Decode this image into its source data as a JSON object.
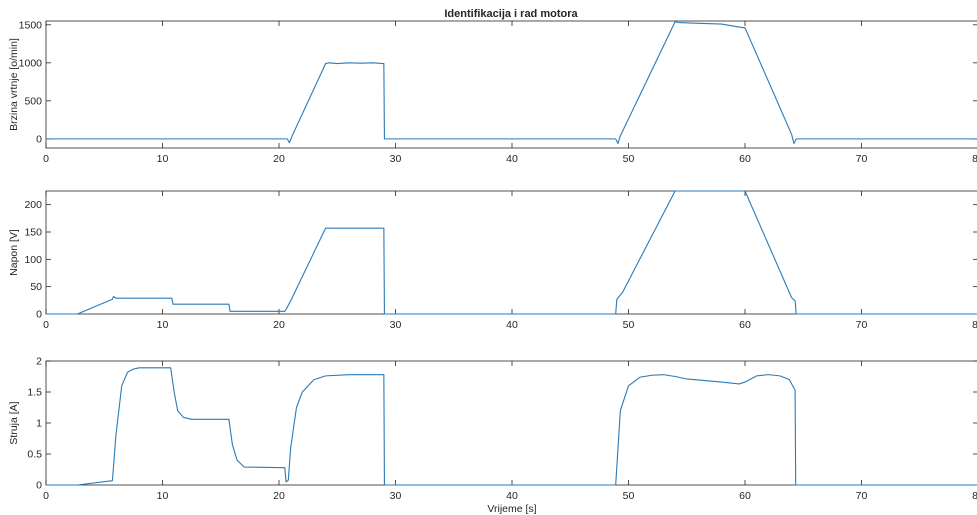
{
  "title": "Identifikacija i rad motora",
  "line_color": "#2a7ab8",
  "chart_data": [
    {
      "type": "line",
      "title": "Identifikacija i rad motora",
      "xlabel": "",
      "ylabel": "Brzina vrtnje [o/min]",
      "xlim": [
        0,
        80
      ],
      "ylim": [
        -120,
        1550
      ],
      "xticks": [
        "0",
        "10",
        "20",
        "30",
        "40",
        "50",
        "60",
        "70",
        "80"
      ],
      "yticks": [
        "0",
        "500",
        "1000",
        "1500"
      ],
      "grid": false,
      "series": [
        {
          "x": [
            0,
            20.7,
            20.9,
            21.1,
            24.0,
            24.3,
            25,
            26,
            27,
            28,
            29.0,
            29.05,
            29.2,
            48.9,
            49.1,
            49.3,
            54.0,
            54.3,
            56,
            58,
            59.5,
            60.0,
            64.0,
            64.2,
            64.4,
            80
          ],
          "y": [
            0,
            0,
            -50,
            30,
            990,
            1000,
            990,
            1000,
            995,
            1000,
            990,
            0,
            0,
            0,
            -60,
            40,
            1540,
            1530,
            1520,
            1510,
            1470,
            1460,
            60,
            -60,
            0,
            0
          ]
        }
      ]
    },
    {
      "type": "line",
      "xlabel": "",
      "ylabel": "Napon [V]",
      "xlim": [
        0,
        80
      ],
      "ylim": [
        0,
        225
      ],
      "xticks": [
        "0",
        "10",
        "20",
        "30",
        "40",
        "50",
        "60",
        "70",
        "80"
      ],
      "yticks": [
        "0",
        "50",
        "100",
        "150",
        "200"
      ],
      "grid": false,
      "series": [
        {
          "x": [
            0,
            2.7,
            5.7,
            5.8,
            6.0,
            10.8,
            10.9,
            15.7,
            15.8,
            20.5,
            20.7,
            21.0,
            24.0,
            29.0,
            29.05,
            48.9,
            49.0,
            49.5,
            54.0,
            60.0,
            64.0,
            64.3,
            64.4,
            80
          ],
          "y": [
            0,
            0,
            27,
            32,
            29,
            29,
            18,
            18,
            5,
            5,
            12,
            24,
            157,
            157,
            0,
            0,
            27,
            40,
            225,
            225,
            30,
            24,
            0,
            0
          ]
        }
      ]
    },
    {
      "type": "line",
      "xlabel": "Vrijeme [s]",
      "ylabel": "Struja [A]",
      "xlim": [
        0,
        80
      ],
      "ylim": [
        0,
        2
      ],
      "xticks": [
        "0",
        "10",
        "20",
        "30",
        "40",
        "50",
        "60",
        "70",
        "80"
      ],
      "yticks": [
        "0",
        "0.5",
        "1",
        "1.5",
        "2"
      ],
      "grid": false,
      "series": [
        {
          "x": [
            0,
            2.7,
            5.7,
            6.0,
            6.5,
            7.0,
            7.5,
            8.0,
            10.7,
            11.0,
            11.3,
            11.8,
            12.5,
            15.7,
            16.0,
            16.4,
            17.0,
            20.5,
            20.6,
            20.8,
            21.0,
            21.5,
            22.0,
            23.0,
            24.0,
            26.0,
            29.0,
            29.05,
            48.9,
            49.0,
            49.3,
            50.0,
            51.0,
            52.0,
            53.0,
            54.0,
            55.0,
            58.0,
            59.5,
            60.0,
            61.0,
            62.0,
            63.0,
            63.8,
            64.3,
            64.35,
            80
          ],
          "y": [
            0,
            0,
            0.07,
            0.8,
            1.6,
            1.82,
            1.87,
            1.89,
            1.89,
            1.5,
            1.2,
            1.09,
            1.06,
            1.06,
            0.65,
            0.4,
            0.29,
            0.28,
            0.05,
            0.08,
            0.6,
            1.25,
            1.5,
            1.7,
            1.76,
            1.78,
            1.78,
            0,
            0,
            0.3,
            1.2,
            1.6,
            1.74,
            1.77,
            1.78,
            1.75,
            1.71,
            1.66,
            1.63,
            1.66,
            1.76,
            1.78,
            1.76,
            1.7,
            1.53,
            0,
            0
          ]
        }
      ]
    }
  ]
}
